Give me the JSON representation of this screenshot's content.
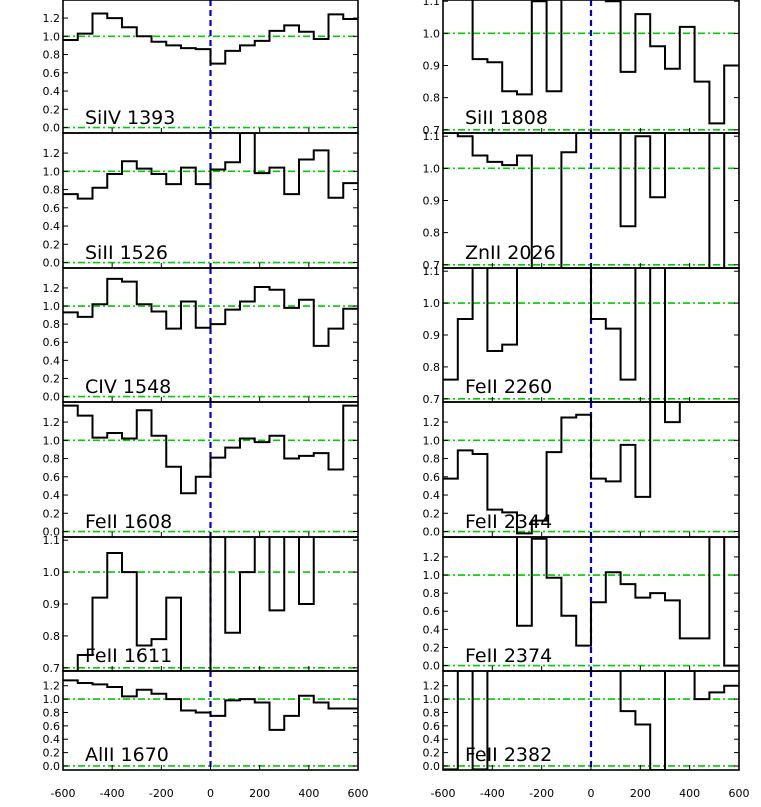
{
  "chart_data": {
    "type": "line",
    "xlim": [
      -600,
      600
    ],
    "x_ticks": [
      -600,
      -400,
      -200,
      0,
      200,
      400,
      600
    ],
    "x_tick_labels": [
      "-600",
      "-400",
      "-200",
      "0",
      "200",
      "400",
      "600"
    ],
    "step_width": 60,
    "reference_line_x": 0,
    "colors": {
      "profile": "#000000",
      "zero_line": "#0000cc",
      "reference": "#00cc00"
    },
    "panels": [
      {
        "label": "SiIV 1393",
        "ylim": [
          -0.06,
          1.42
        ],
        "y_ticks": [
          0.0,
          0.2,
          0.4,
          0.6,
          0.8,
          1.0,
          1.2
        ],
        "y_tick_labels": [
          "0.0",
          "0.2",
          "0.4",
          "0.6",
          "0.8",
          "1.0",
          "1.2"
        ],
        "hlines": [
          0.0,
          1.0
        ],
        "x": [
          -600,
          -540,
          -480,
          -420,
          -360,
          -300,
          -240,
          -180,
          -120,
          -60,
          0,
          60,
          120,
          180,
          240,
          300,
          360,
          420,
          480,
          540
        ],
        "y": [
          0.96,
          1.03,
          1.25,
          1.2,
          1.1,
          1.0,
          0.94,
          0.9,
          0.87,
          0.86,
          0.7,
          0.84,
          0.9,
          0.95,
          1.06,
          1.12,
          1.05,
          0.97,
          1.24,
          1.19
        ]
      },
      {
        "label": "SiII 1526",
        "ylim": [
          -0.06,
          1.42
        ],
        "y_ticks": [
          0.0,
          0.2,
          0.4,
          0.6,
          0.8,
          1.0,
          1.2
        ],
        "y_tick_labels": [
          "0.0",
          "0.2",
          "0.4",
          "0.6",
          "0.8",
          "1.0",
          "1.2"
        ],
        "hlines": [
          0.0,
          1.0
        ],
        "x": [
          -600,
          -540,
          -480,
          -420,
          -360,
          -300,
          -240,
          -180,
          -120,
          -60,
          0,
          60,
          120,
          180,
          240,
          300,
          360,
          420,
          480,
          540
        ],
        "y": [
          0.75,
          0.7,
          0.82,
          0.97,
          1.11,
          1.03,
          0.97,
          0.86,
          1.04,
          0.86,
          1.02,
          1.1,
          1.42,
          0.98,
          1.04,
          0.75,
          1.13,
          1.23,
          0.71,
          0.87
        ]
      },
      {
        "label": "CIV 1548",
        "ylim": [
          -0.06,
          1.42
        ],
        "y_ticks": [
          0.0,
          0.2,
          0.4,
          0.6,
          0.8,
          1.0,
          1.2
        ],
        "y_tick_labels": [
          "0.0",
          "0.2",
          "0.4",
          "0.6",
          "0.8",
          "1.0",
          "1.2"
        ],
        "hlines": [
          0.0,
          1.0
        ],
        "x": [
          -600,
          -540,
          -480,
          -420,
          -360,
          -300,
          -240,
          -180,
          -120,
          -60,
          0,
          60,
          120,
          180,
          240,
          300,
          360,
          420,
          480,
          540
        ],
        "y": [
          0.93,
          0.88,
          1.02,
          1.3,
          1.27,
          1.02,
          0.94,
          0.75,
          1.05,
          0.76,
          0.8,
          0.96,
          1.05,
          1.21,
          1.18,
          0.98,
          1.07,
          0.56,
          0.75,
          0.97
        ]
      },
      {
        "label": "FeII 1608",
        "ylim": [
          -0.06,
          1.42
        ],
        "y_ticks": [
          0.0,
          0.2,
          0.4,
          0.6,
          0.8,
          1.0,
          1.2
        ],
        "y_tick_labels": [
          "0.0",
          "0.2",
          "0.4",
          "0.6",
          "0.8",
          "1.0",
          "1.2"
        ],
        "hlines": [
          0.0,
          1.0
        ],
        "x": [
          -600,
          -540,
          -480,
          -420,
          -360,
          -300,
          -240,
          -180,
          -120,
          -60,
          0,
          60,
          120,
          180,
          240,
          300,
          360,
          420,
          480,
          540
        ],
        "y": [
          1.38,
          1.27,
          1.03,
          1.08,
          1.02,
          1.33,
          1.05,
          0.71,
          0.42,
          0.6,
          0.81,
          0.92,
          1.02,
          0.98,
          1.05,
          0.8,
          0.83,
          0.86,
          0.68,
          1.38
        ]
      },
      {
        "label": "FeII 1611",
        "ylim": [
          0.69,
          1.11
        ],
        "y_ticks": [
          0.7,
          0.8,
          0.9,
          1.0,
          1.1
        ],
        "y_tick_labels": [
          "0.7",
          "0.8",
          "0.9",
          "1.0",
          "1.1"
        ],
        "hlines": [
          0.7,
          1.0
        ],
        "x": [
          -600,
          -540,
          -480,
          -420,
          -360,
          -300,
          -240,
          -180,
          -120,
          -60,
          0,
          60,
          120,
          180,
          240,
          300,
          360,
          420,
          480,
          540
        ],
        "y": [
          0.69,
          0.74,
          0.92,
          1.06,
          1.0,
          0.77,
          0.79,
          0.92,
          0.69,
          0.69,
          1.11,
          0.81,
          1.0,
          1.11,
          0.88,
          1.11,
          0.9,
          1.11,
          1.11,
          1.11
        ]
      },
      {
        "label": "AlII 1670",
        "ylim": [
          -0.06,
          1.42
        ],
        "y_ticks": [
          0.0,
          0.2,
          0.4,
          0.6,
          0.8,
          1.0,
          1.2
        ],
        "y_tick_labels": [
          "0.0",
          "0.2",
          "0.4",
          "0.6",
          "0.8",
          "1.0",
          "1.2"
        ],
        "hlines": [
          0.0,
          1.0
        ],
        "x": [
          -600,
          -540,
          -480,
          -420,
          -360,
          -300,
          -240,
          -180,
          -120,
          -60,
          0,
          60,
          120,
          180,
          240,
          300,
          360,
          420,
          480,
          540
        ],
        "y": [
          1.28,
          1.24,
          1.22,
          1.18,
          1.04,
          1.14,
          1.08,
          1.0,
          0.83,
          0.8,
          0.75,
          0.98,
          1.0,
          0.95,
          0.54,
          0.75,
          1.05,
          0.95,
          0.86,
          0.86
        ]
      },
      {
        "label": "SiII 1808",
        "ylim": [
          0.69,
          1.11
        ],
        "y_ticks": [
          0.7,
          0.8,
          0.9,
          1.0,
          1.1
        ],
        "y_tick_labels": [
          "0.7",
          "0.8",
          "0.9",
          "1.0",
          "1.1"
        ],
        "hlines": [
          0.7,
          1.0
        ],
        "x": [
          -600,
          -540,
          -480,
          -420,
          -360,
          -300,
          -240,
          -180,
          -120,
          -60,
          0,
          60,
          120,
          180,
          240,
          300,
          360,
          420,
          480,
          540
        ],
        "y": [
          1.11,
          1.11,
          0.92,
          0.91,
          0.82,
          0.81,
          1.1,
          0.82,
          1.11,
          1.11,
          1.11,
          1.1,
          0.88,
          1.06,
          0.96,
          0.89,
          1.02,
          0.85,
          0.72,
          0.9
        ]
      },
      {
        "label": "ZnII 2026",
        "ylim": [
          0.69,
          1.11
        ],
        "y_ticks": [
          0.7,
          0.8,
          0.9,
          1.0,
          1.1
        ],
        "y_tick_labels": [
          "0.7",
          "0.8",
          "0.9",
          "1.0",
          "1.1"
        ],
        "hlines": [
          0.7,
          1.0
        ],
        "x": [
          -600,
          -540,
          -480,
          -420,
          -360,
          -300,
          -240,
          -180,
          -120,
          -60,
          0,
          60,
          120,
          180,
          240,
          300,
          360,
          420,
          480,
          540
        ],
        "y": [
          1.11,
          1.1,
          1.04,
          1.02,
          1.01,
          1.04,
          0.69,
          0.69,
          1.05,
          1.11,
          1.11,
          1.11,
          0.82,
          1.1,
          0.91,
          1.11,
          1.11,
          1.11,
          0.69,
          1.11
        ]
      },
      {
        "label": "FeII 2260",
        "ylim": [
          0.69,
          1.11
        ],
        "y_ticks": [
          0.7,
          0.8,
          0.9,
          1.0,
          1.1
        ],
        "y_tick_labels": [
          "0.7",
          "0.8",
          "0.9",
          "1.0",
          "1.1"
        ],
        "hlines": [
          0.7,
          1.0
        ],
        "x": [
          -600,
          -540,
          -480,
          -420,
          -360,
          -300,
          -240,
          -180,
          -120,
          -60,
          0,
          60,
          120,
          180,
          240,
          300,
          360,
          420,
          480,
          540
        ],
        "y": [
          0.76,
          0.95,
          1.11,
          0.85,
          0.87,
          1.11,
          1.11,
          1.11,
          1.11,
          1.11,
          0.95,
          0.92,
          0.76,
          1.11,
          0.69,
          1.11,
          1.11,
          1.11,
          1.11,
          1.11
        ]
      },
      {
        "label": "FeII 2344",
        "ylim": [
          -0.06,
          1.42
        ],
        "y_ticks": [
          0.0,
          0.2,
          0.4,
          0.6,
          0.8,
          1.0,
          1.2
        ],
        "y_tick_labels": [
          "0.0",
          "0.2",
          "0.4",
          "0.6",
          "0.8",
          "1.0",
          "1.2"
        ],
        "hlines": [
          0.0,
          1.0
        ],
        "x": [
          -600,
          -540,
          -480,
          -420,
          -360,
          -300,
          -240,
          -180,
          -120,
          -60,
          0,
          60,
          120,
          180,
          240,
          300,
          360,
          420,
          480,
          540
        ],
        "y": [
          0.58,
          0.89,
          0.85,
          0.24,
          0.21,
          -0.02,
          0.12,
          0.87,
          1.25,
          1.28,
          0.58,
          0.55,
          0.95,
          0.38,
          1.42,
          1.2,
          1.42,
          1.42,
          1.42,
          1.42
        ]
      },
      {
        "label": "FeII 2374",
        "ylim": [
          -0.06,
          1.42
        ],
        "y_ticks": [
          0.0,
          0.2,
          0.4,
          0.6,
          0.8,
          1.0,
          1.2
        ],
        "y_tick_labels": [
          "0.0",
          "0.2",
          "0.4",
          "0.6",
          "0.8",
          "1.0",
          "1.2"
        ],
        "hlines": [
          0.0,
          1.0
        ],
        "x": [
          -600,
          -540,
          -480,
          -420,
          -360,
          -300,
          -240,
          -180,
          -120,
          -60,
          0,
          60,
          120,
          180,
          240,
          300,
          360,
          420,
          480,
          540
        ],
        "y": [
          1.42,
          1.42,
          1.42,
          1.42,
          1.42,
          0.44,
          1.4,
          0.97,
          0.55,
          0.22,
          0.7,
          1.03,
          0.9,
          0.75,
          0.8,
          0.72,
          0.3,
          0.3,
          1.42,
          0.0
        ]
      },
      {
        "label": "FeII 2382",
        "ylim": [
          -0.06,
          1.42
        ],
        "y_ticks": [
          0.0,
          0.2,
          0.4,
          0.6,
          0.8,
          1.0,
          1.2
        ],
        "y_tick_labels": [
          "0.0",
          "0.2",
          "0.4",
          "0.6",
          "0.8",
          "1.0",
          "1.2"
        ],
        "hlines": [
          0.0,
          1.0
        ],
        "x": [
          -600,
          -540,
          -480,
          -420,
          -360,
          -300,
          -240,
          -180,
          -120,
          -60,
          0,
          60,
          120,
          180,
          240,
          300,
          360,
          420,
          480,
          540
        ],
        "y": [
          -0.05,
          1.42,
          -0.05,
          1.42,
          1.42,
          1.42,
          1.42,
          1.42,
          1.42,
          1.42,
          1.42,
          1.42,
          0.82,
          0.62,
          -0.06,
          1.42,
          1.42,
          1.0,
          1.1,
          1.2
        ]
      }
    ]
  }
}
